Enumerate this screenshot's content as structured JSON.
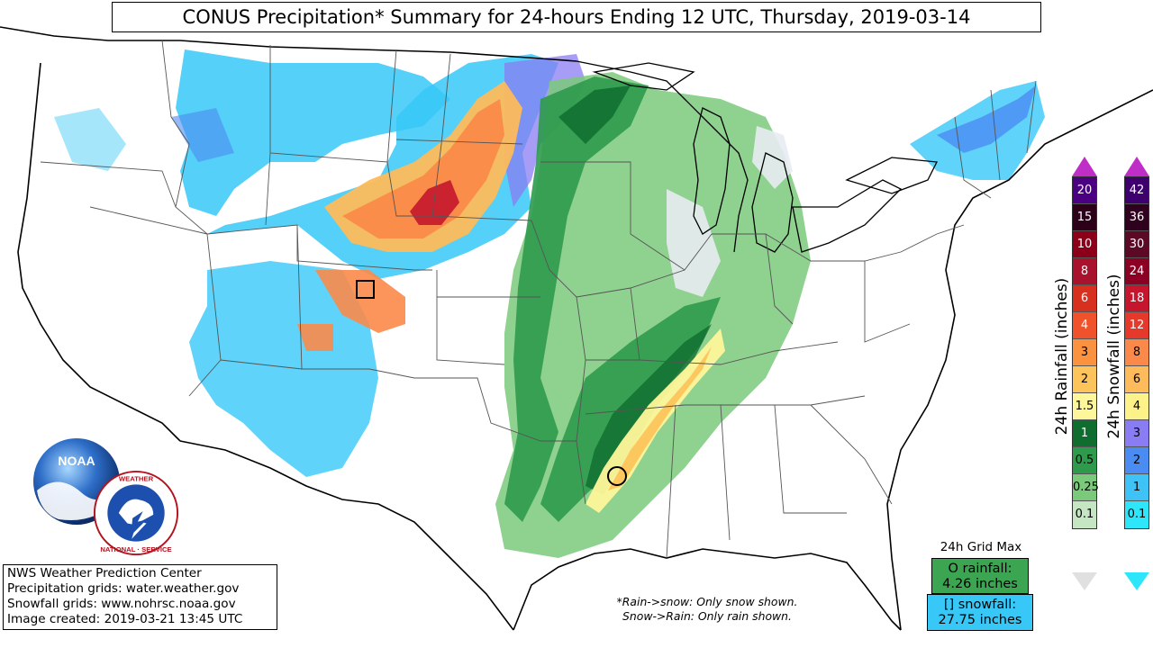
{
  "title": "CONUS Precipitation* Summary for 24-hours Ending 12 UTC, Thursday, 2019-03-14",
  "credits": {
    "line1": "NWS Weather Prediction Center",
    "line2": "Precipitation grids: water.weather.gov",
    "line3": "Snowfall grids: www.nohrsc.noaa.gov",
    "line4": "Image created: 2019-03-21 13:45 UTC"
  },
  "footnote": {
    "line1": "*Rain->snow: Only snow shown.",
    "line2": "Snow->Rain: Only rain shown."
  },
  "grid_max": {
    "title": "24h Grid Max",
    "rain_line1": "O rainfall:",
    "rain_line2": "4.26 inches",
    "snow_line1": "[] snowfall:",
    "snow_line2": "27.75 inches"
  },
  "rain_legend": {
    "label": "24h Rainfall (inches)",
    "levels": [
      "20",
      "15",
      "10",
      "8",
      "6",
      "4",
      "3",
      "2",
      "1.5",
      "1",
      "0.5",
      "0.25",
      "0.1"
    ],
    "colors": [
      "#4b0082",
      "#2b0018",
      "#8b0018",
      "#a8122c",
      "#d7301f",
      "#f0522b",
      "#fb9240",
      "#fdc45c",
      "#fef69b",
      "#0f6d2f",
      "#2d9a4c",
      "#7bc97a",
      "#c6e6c3"
    ]
  },
  "snow_legend": {
    "label": "24h Snowfall (inches)",
    "levels": [
      "42",
      "36",
      "30",
      "24",
      "18",
      "12",
      "8",
      "6",
      "4",
      "3",
      "2",
      "1",
      "0.1"
    ],
    "colors": [
      "#3f006f",
      "#30001f",
      "#5c0a24",
      "#8b0023",
      "#c5162d",
      "#e5392c",
      "#fb8a4a",
      "#fdbb5b",
      "#fdf28a",
      "#8a7cf3",
      "#4b8cf2",
      "#3fc2f5",
      "#2ee6fa"
    ]
  },
  "logos": {
    "noaa": "NOAA",
    "nws": "NATIONAL WEATHER SERVICE"
  },
  "accent_colors": {
    "legend_cap": "#c02ec8",
    "land": "#ffffff",
    "water": "#ffffff"
  }
}
